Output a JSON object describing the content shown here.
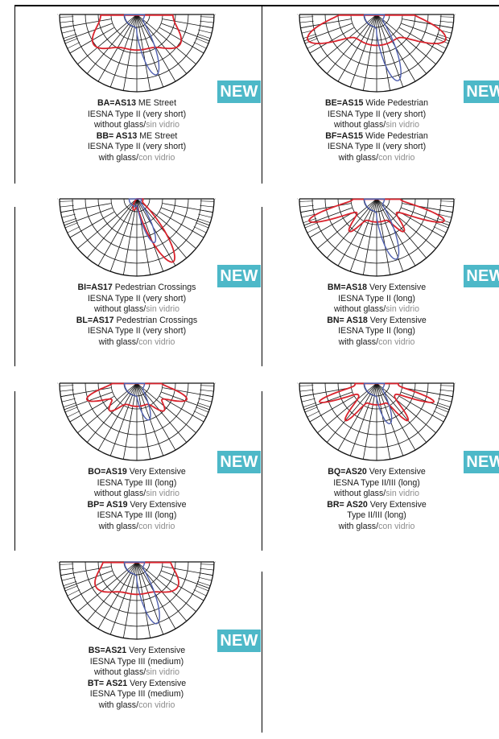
{
  "badge": "NEW",
  "colors": {
    "badge": "#4db8c8",
    "curve_without_glass": "#d9232d",
    "curve_with_glass": "#5060b0"
  },
  "cells": [
    {
      "lines": [
        {
          "code": "BA=AS13",
          "text": " ME Street"
        },
        {
          "text": "IESNA Type II (very short)"
        },
        {
          "text": "without glass/",
          "gray": "sin vidrio"
        },
        {
          "code": "BB= AS13",
          "text": " ME Street"
        },
        {
          "text": "IESNA Type II (very short)"
        },
        {
          "text": "with glass/",
          "gray": "con vidrio"
        }
      ]
    },
    {
      "lines": [
        {
          "code": "BE=AS15",
          "text": " Wide Pedestrian"
        },
        {
          "text": "IESNA Type II (very short)"
        },
        {
          "text": "without glass/",
          "gray": "sin vidrio"
        },
        {
          "code": "BF=AS15",
          "text": " Wide Pedestrian"
        },
        {
          "text": "IESNA Type II (very short)"
        },
        {
          "text": "with glass/",
          "gray": "con vidrio"
        }
      ]
    },
    {
      "lines": [
        {
          "code": "BI=AS17",
          "text": " Pedestrian Crossings"
        },
        {
          "text": "IESNA Type II (very short)"
        },
        {
          "text": "without glass/",
          "gray": "sin vidrio"
        },
        {
          "code": "BL=AS17",
          "text": " Pedestrian Crossings"
        },
        {
          "text": "IESNA Type II (very short)"
        },
        {
          "text": "with glass/",
          "gray": "con vidrio"
        }
      ]
    },
    {
      "lines": [
        {
          "code": "BM=AS18",
          "text": " Very Extensive"
        },
        {
          "text": "IESNA Type II (long)"
        },
        {
          "text": "without glass/",
          "gray": "sin vidrio"
        },
        {
          "code": "BN= AS18",
          "text": " Very Extensive"
        },
        {
          "text": "IESNA Type II (long)"
        },
        {
          "text": "with glass/",
          "gray": "con vidrio"
        }
      ]
    },
    {
      "lines": [
        {
          "code": "BO=AS19",
          "text": " Very Extensive"
        },
        {
          "text": "IESNA Type III (long)"
        },
        {
          "text": "without glass/",
          "gray": "sin vidrio"
        },
        {
          "code": "BP= AS19",
          "text": " Very Extensive"
        },
        {
          "text": "IESNA Type III (long)"
        },
        {
          "text": "with glass/",
          "gray": "con vidrio"
        }
      ]
    },
    {
      "lines": [
        {
          "code": "BQ=AS20",
          "text": " Very Extensive"
        },
        {
          "text": "IESNA Type II/III (long)"
        },
        {
          "text": "without glass/",
          "gray": "sin vidrio"
        },
        {
          "code": "BR= AS20",
          "text": " Very Extensive"
        },
        {
          "text": "Type II/III (long)"
        },
        {
          "text": "with glass/",
          "gray": "con vidrio"
        }
      ]
    },
    {
      "lines": [
        {
          "code": "BS=AS21",
          "text": " Very Extensive"
        },
        {
          "text": "IESNA Type III (medium)"
        },
        {
          "text": "without glass/",
          "gray": "sin vidrio"
        },
        {
          "code": "BT= AS21",
          "text": " Very Extensive"
        },
        {
          "text": "IESNA Type III (medium)"
        },
        {
          "text": "with glass/",
          "gray": "con vidrio"
        }
      ]
    }
  ]
}
